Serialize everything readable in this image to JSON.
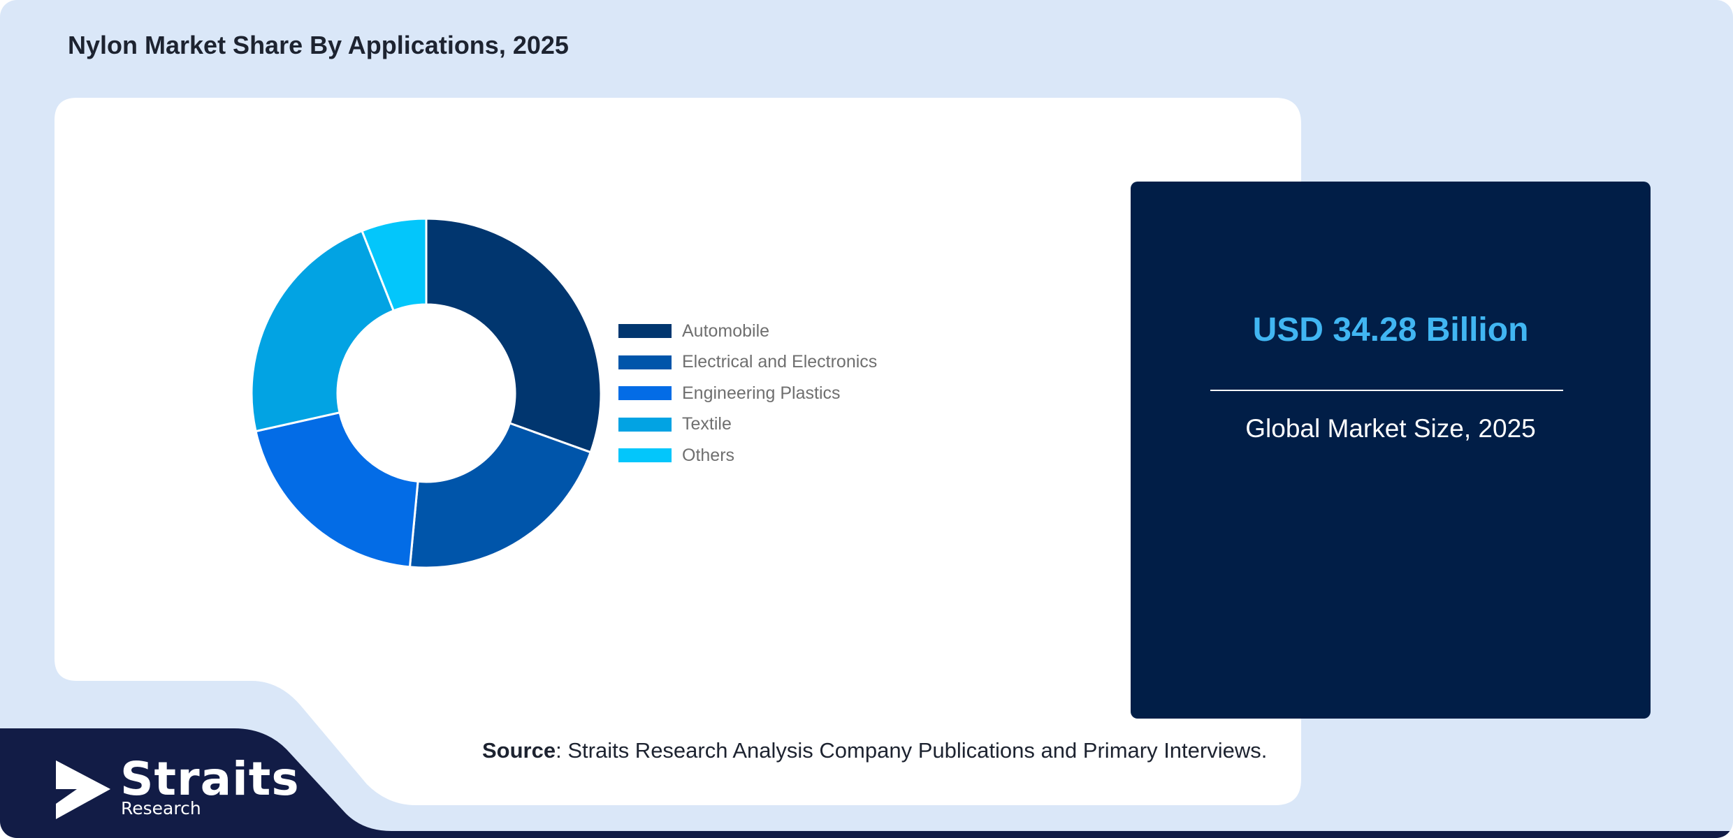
{
  "title": "Nylon Market Share By Applications, 2025",
  "chart_data": {
    "type": "pie",
    "style": "donut",
    "categories": [
      "Automobile",
      "Electrical and Electronics",
      "Engineering Plastics",
      "Textile",
      "Others"
    ],
    "values": [
      30.5,
      21,
      20,
      22.5,
      6
    ],
    "unit": "%",
    "colors": [
      "#01366f",
      "#0055aa",
      "#036ce6",
      "#02a3e3",
      "#03c6fb"
    ],
    "legend_position": "right"
  },
  "stat": {
    "value": "USD 34.28 Billion",
    "label": "Global Market Size, 2025"
  },
  "source": {
    "label": "Source",
    "text": ": Straits Research Analysis Company Publications and Primary Interviews."
  },
  "logo": {
    "name": "Straits",
    "sub": "Research"
  },
  "colors": {
    "page_background": "#dae7f8",
    "panel_background": "#ffffff",
    "stat_card": "#011e47",
    "stat_value": "#41b6f2",
    "brand_navy": "#121c46"
  }
}
